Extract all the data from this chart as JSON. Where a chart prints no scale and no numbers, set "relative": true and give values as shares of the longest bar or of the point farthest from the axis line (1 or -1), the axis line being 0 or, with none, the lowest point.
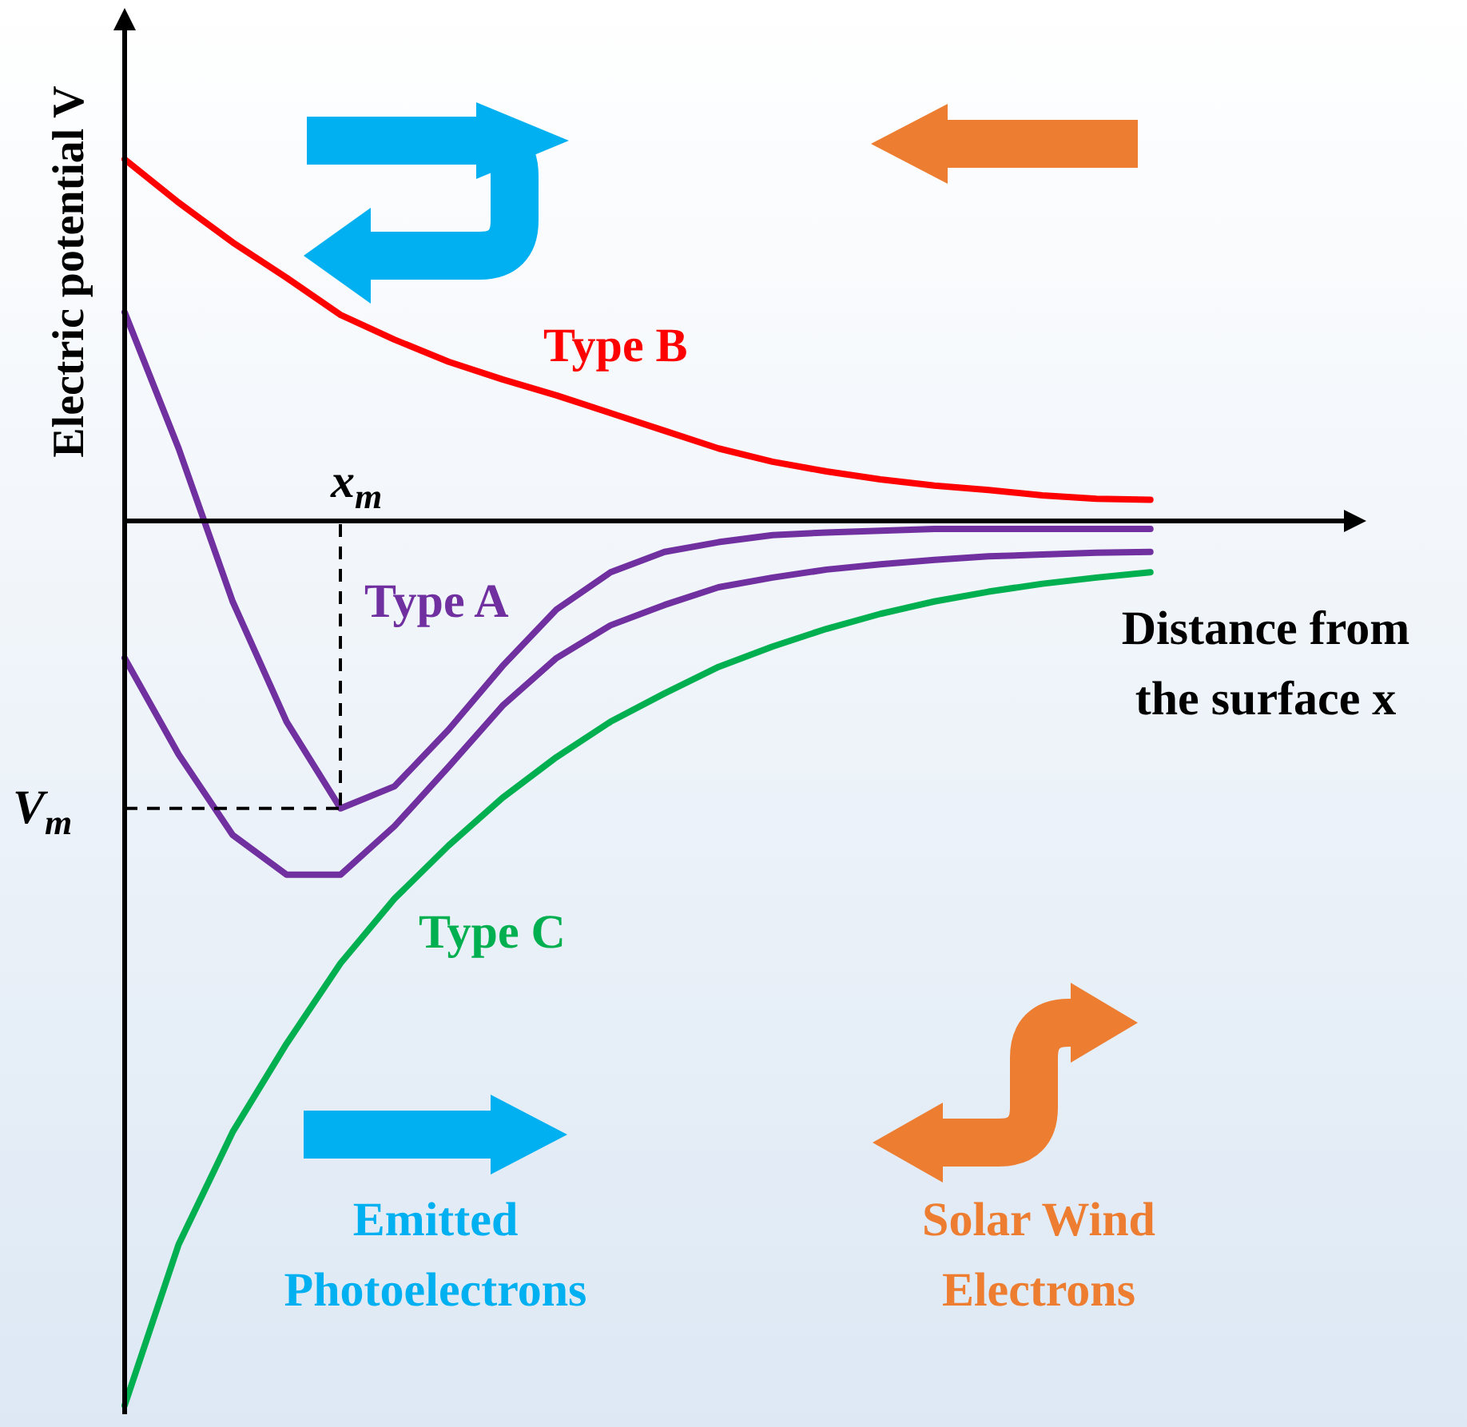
{
  "chart_data": {
    "type": "line",
    "relative": true,
    "xlabel": "Distance from the surface x",
    "ylabel": "Electric potential V",
    "tick_labels": false,
    "legend": false,
    "marker": "none",
    "line_style": "solid",
    "categories": [
      null,
      null,
      null,
      null,
      null,
      null,
      null,
      null,
      null,
      null,
      null,
      null,
      null,
      null,
      null,
      null,
      null,
      null,
      null,
      null,
      null,
      null,
      null,
      null
    ],
    "series": [
      {
        "name": "Type B",
        "color": "#ff0000",
        "values": [
          0.409,
          0.36,
          0.315,
          0.275,
          0.233,
          0.205,
          0.18,
          0.16,
          0.142,
          0.122,
          0.102,
          0.082,
          0.067,
          0.056,
          0.047,
          0.04,
          0.035,
          0.029,
          0.025,
          0.024,
          null,
          null,
          null,
          null
        ]
      },
      {
        "name": "Type A",
        "color": "#7030a0",
        "values": [
          0.236,
          0.082,
          -0.091,
          -0.227,
          -0.325,
          -0.3,
          -0.236,
          -0.164,
          -0.1,
          -0.058,
          -0.035,
          -0.024,
          -0.016,
          -0.013,
          -0.011,
          -0.009,
          -0.009,
          -0.009,
          -0.009,
          -0.009,
          null,
          null,
          null,
          null
        ]
      },
      {
        "color": "#7030a0",
        "values": [
          -0.155,
          -0.264,
          -0.355,
          -0.4,
          -0.4,
          -0.345,
          -0.278,
          -0.209,
          -0.155,
          -0.118,
          -0.095,
          -0.075,
          -0.064,
          -0.055,
          -0.049,
          -0.044,
          -0.04,
          -0.038,
          -0.036,
          -0.035,
          null,
          null,
          null,
          null
        ]
      },
      {
        "name": "Type C",
        "color": "#00b050",
        "values": [
          -1,
          -0.818,
          -0.691,
          -0.591,
          -0.5,
          -0.427,
          -0.367,
          -0.313,
          -0.267,
          -0.227,
          -0.195,
          -0.165,
          -0.142,
          -0.122,
          -0.105,
          -0.091,
          -0.08,
          -0.071,
          -0.064,
          -0.058,
          null,
          null,
          null,
          null
        ]
      }
    ],
    "ref_lines": [
      {
        "axis": "y",
        "value": -0.325,
        "label": "V$_{m}$",
        "color": "#000000",
        "line_style": "dashed"
      }
    ],
    "annotations": [
      "x$_{m}$",
      "Emitted Photoelectrons",
      "Solar Wind Electrons"
    ]
  }
}
